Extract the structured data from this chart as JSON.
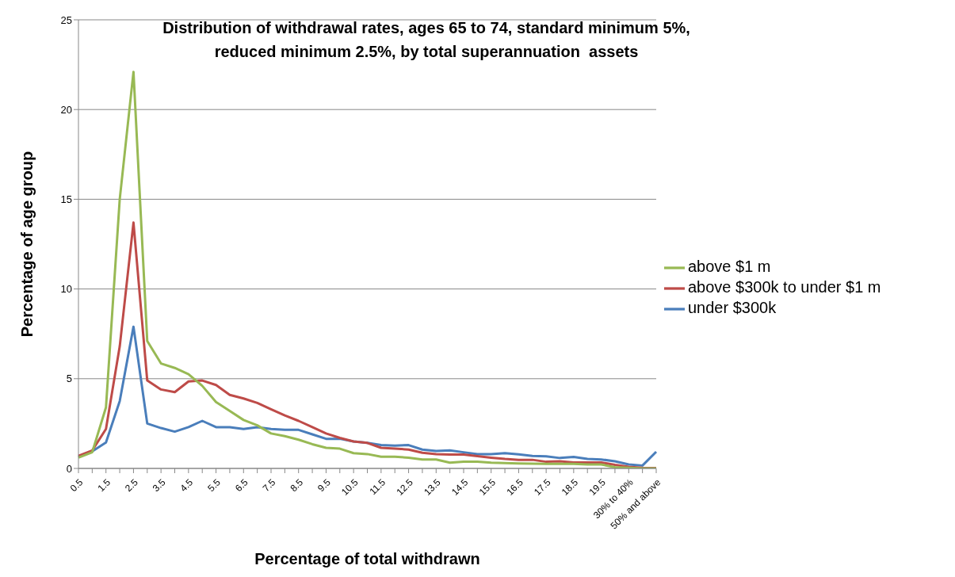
{
  "chart_data": {
    "type": "line",
    "title": "Distribution of withdrawal rates, ages 65 to 74, standard minimum 5%, reduced minimum 2.5%, by total superannuation  assets",
    "xlabel": "Percentage of total withdrawn",
    "ylabel": "Percentage of age group",
    "categories": [
      "0.5",
      null,
      "1.5",
      null,
      "2.5",
      null,
      "3.5",
      null,
      "4.5",
      null,
      "5.5",
      null,
      "6.5",
      null,
      "7.5",
      null,
      "8.5",
      null,
      "9.5",
      null,
      "10.5",
      null,
      "11.5",
      null,
      "12.5",
      null,
      "13.5",
      null,
      "14.5",
      null,
      "15.5",
      null,
      "16.5",
      null,
      "17.5",
      null,
      "18.5",
      null,
      "19.5",
      null,
      "30% to 40%",
      null,
      "50% and above"
    ],
    "series": [
      {
        "name": "under $300k",
        "color": "#4a7ebb",
        "values": [
          0.65,
          0.95,
          1.45,
          3.75,
          7.9,
          2.5,
          2.25,
          2.05,
          2.3,
          2.65,
          2.3,
          2.3,
          2.2,
          2.3,
          2.2,
          2.15,
          2.15,
          1.9,
          1.65,
          1.65,
          1.5,
          1.42,
          1.3,
          1.27,
          1.3,
          1.05,
          0.97,
          1.0,
          0.9,
          0.8,
          0.8,
          0.85,
          0.78,
          0.7,
          0.67,
          0.58,
          0.64,
          0.53,
          0.5,
          0.4,
          0.22,
          0.16,
          0.93
        ]
      },
      {
        "name": "above $300k to under $1 m",
        "color": "#be4b48",
        "values": [
          0.7,
          1.0,
          2.2,
          6.8,
          13.7,
          4.9,
          4.4,
          4.25,
          4.85,
          4.9,
          4.65,
          4.1,
          3.9,
          3.65,
          3.3,
          2.95,
          2.65,
          2.3,
          1.95,
          1.7,
          1.5,
          1.42,
          1.15,
          1.1,
          1.05,
          0.87,
          0.8,
          0.77,
          0.77,
          0.68,
          0.6,
          0.53,
          0.48,
          0.48,
          0.37,
          0.4,
          0.33,
          0.33,
          0.33,
          0.2,
          0.09,
          0.03,
          0.02
        ]
      },
      {
        "name": "above $1 m",
        "color": "#98b954",
        "values": [
          0.6,
          0.9,
          3.4,
          15,
          22.1,
          7.1,
          5.85,
          5.6,
          5.25,
          4.6,
          3.7,
          3.2,
          2.7,
          2.4,
          1.95,
          1.8,
          1.6,
          1.35,
          1.15,
          1.1,
          0.85,
          0.8,
          0.65,
          0.65,
          0.6,
          0.5,
          0.5,
          0.32,
          0.38,
          0.38,
          0.32,
          0.3,
          0.28,
          0.27,
          0.25,
          0.25,
          0.25,
          0.22,
          0.22,
          0.07,
          0.03,
          0,
          0
        ]
      }
    ],
    "ylim": [
      0,
      25
    ],
    "yticks": [
      0,
      5,
      10,
      15,
      20,
      25
    ],
    "grid": "y",
    "legend": "right",
    "marker": "none",
    "line_style": "solid"
  }
}
